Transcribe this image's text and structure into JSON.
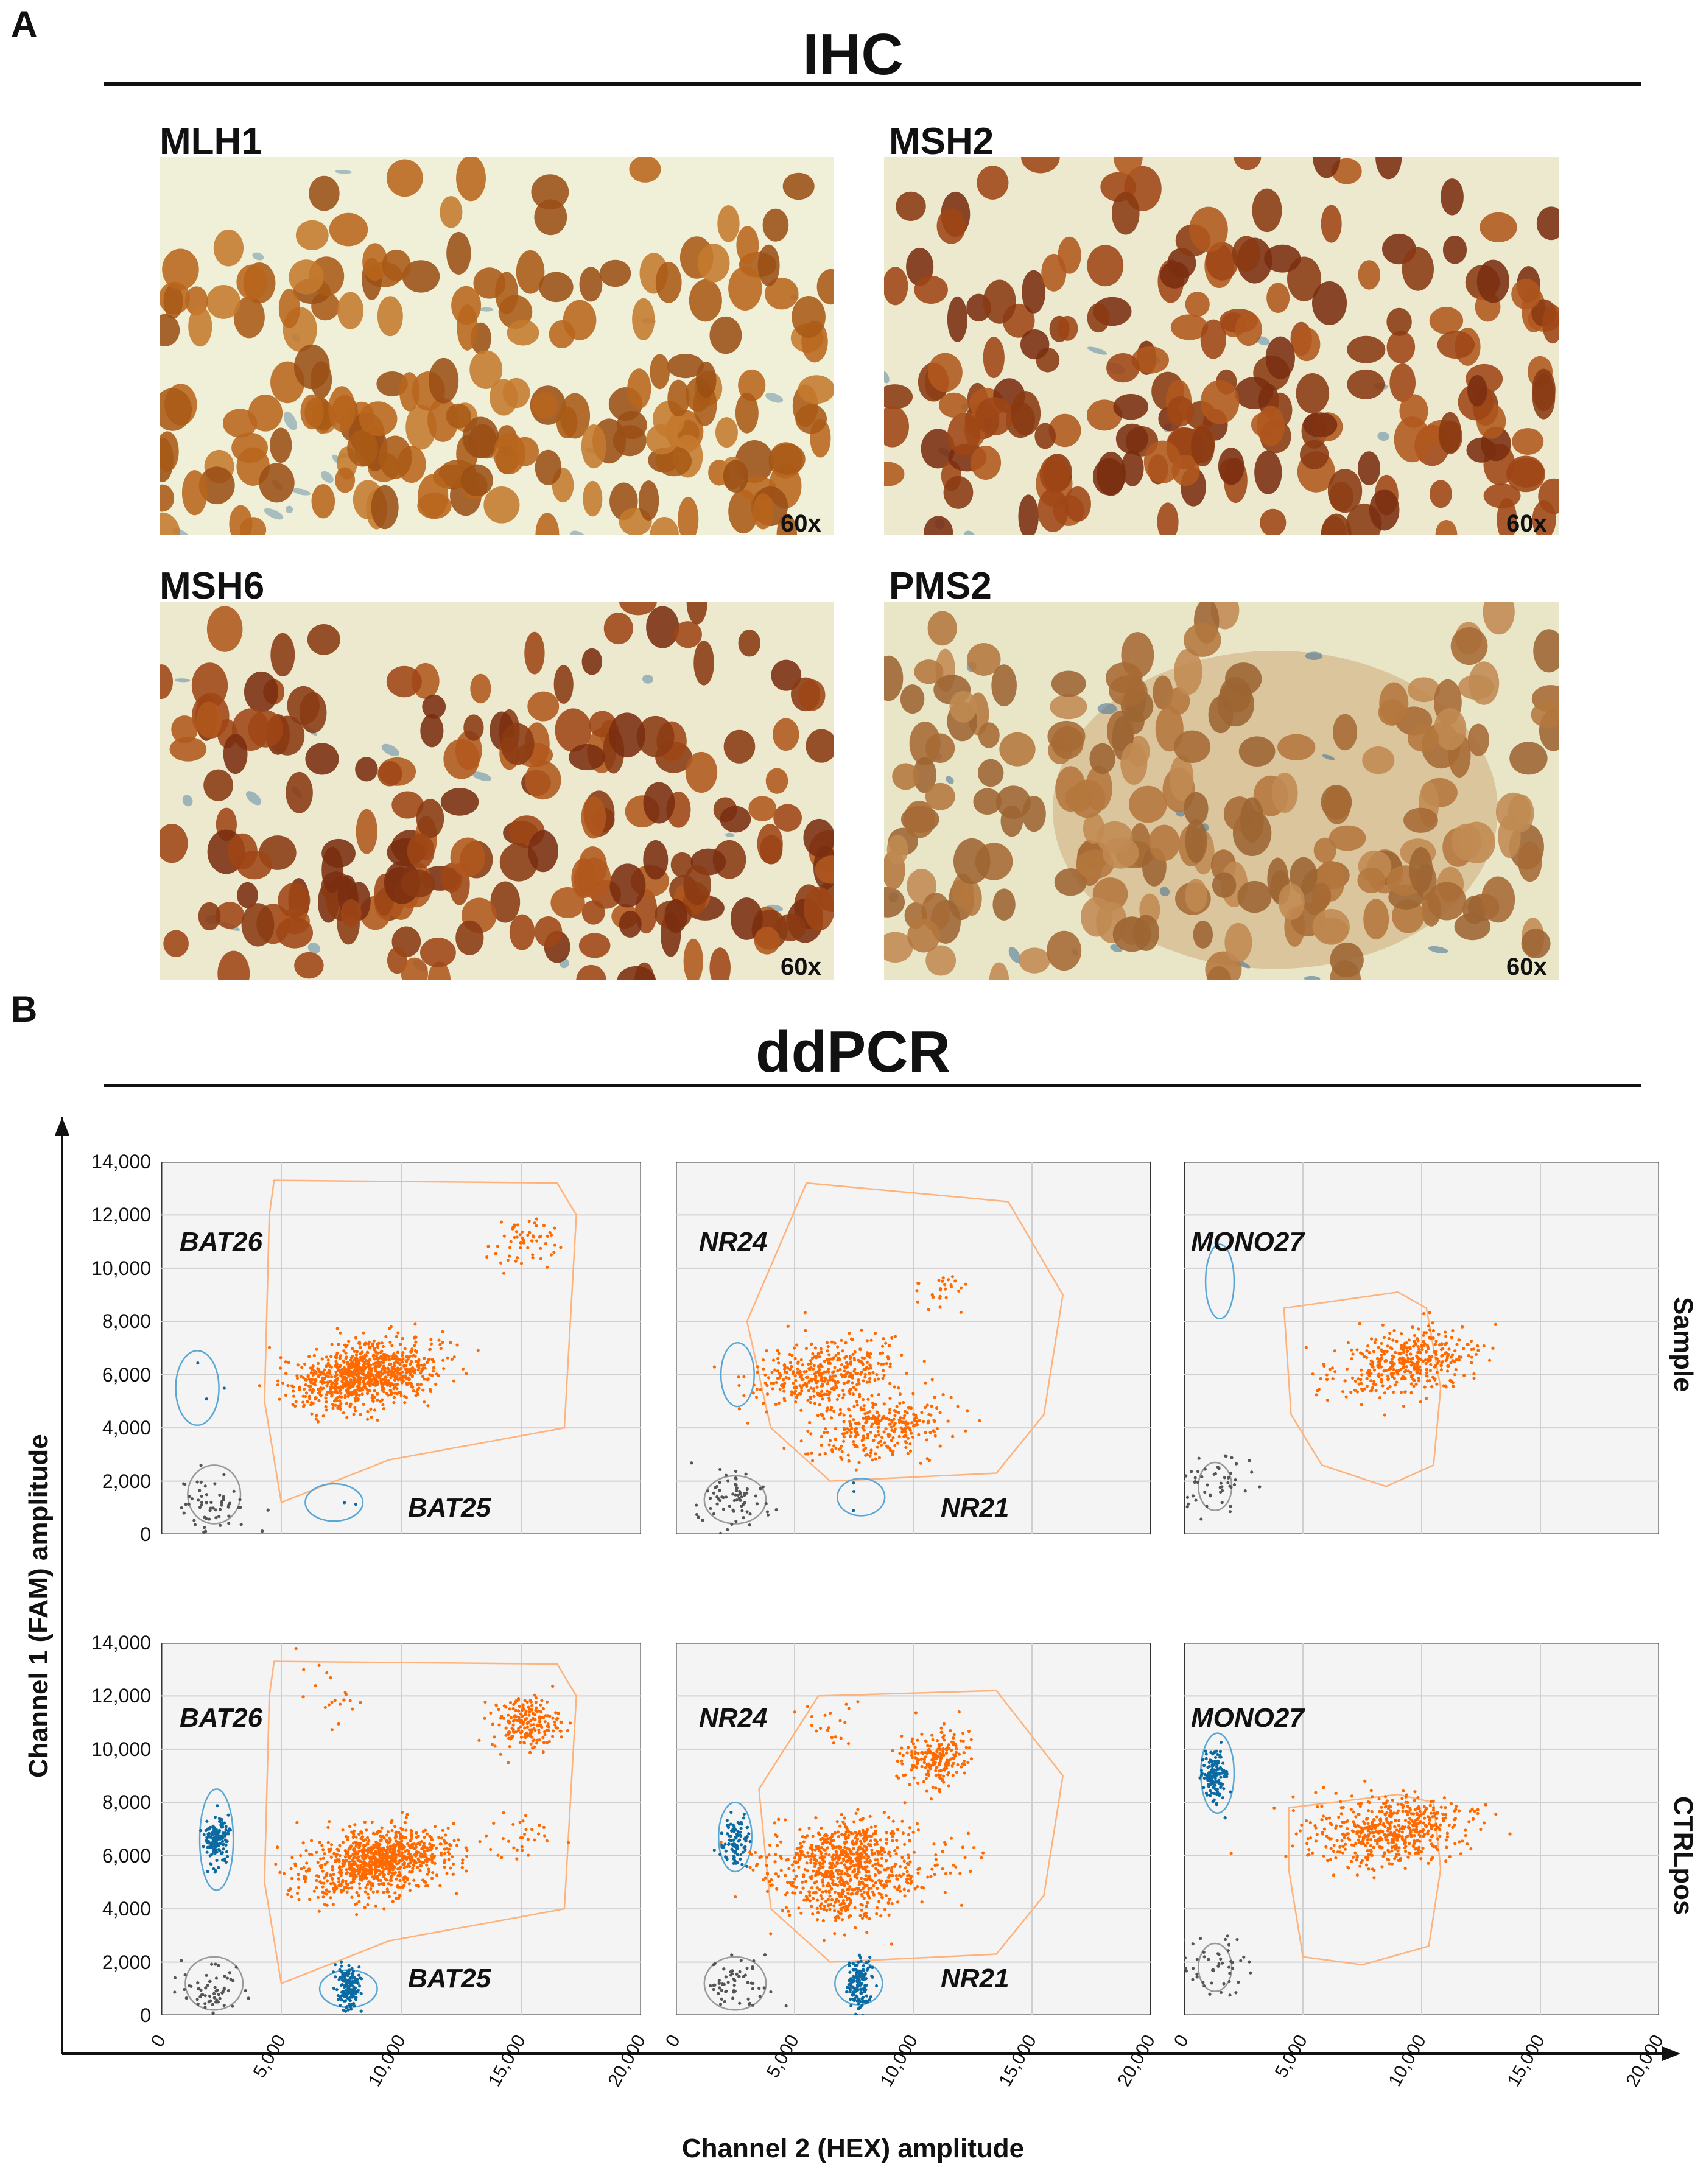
{
  "panel_a": {
    "letter": "A",
    "title": "IHC"
  },
  "panel_b": {
    "letter": "B",
    "title": "ddPCR"
  },
  "ihc_images": [
    {
      "label": "MLH1",
      "magnification": "60x",
      "stain": "brown"
    },
    {
      "label": "MSH2",
      "magnification": "60x",
      "stain": "dark-brown"
    },
    {
      "label": "MSH6",
      "magnification": "60x",
      "stain": "dark-brown"
    },
    {
      "label": "PMS2",
      "magnification": "60x",
      "stain": "light-brown"
    }
  ],
  "colors": {
    "positive_cluster": "#ff6a00",
    "single_cluster": "#0b6aa2",
    "negative_cluster": "#555555",
    "plot_background": "#f4f4f4",
    "gate_orange": "#ffb27a",
    "gate_blue": "#5aa7d6",
    "gate_gray": "#9a9a9a"
  },
  "chart_data": [
    {
      "type": "scatter",
      "row": "Sample",
      "marker_fam": "BAT26",
      "marker_hex": "BAT25",
      "xlabel": "Channel 2 (HEX) amplitude",
      "ylabel": "Channel 1 (FAM) amplitude",
      "xlim": [
        0,
        20000
      ],
      "ylim": [
        0,
        14000
      ],
      "clusters": [
        {
          "name": "double-negative",
          "color": "negative",
          "center": [
            2000,
            1100
          ],
          "n": 60
        },
        {
          "name": "double-positive",
          "color": "positive",
          "center": [
            8500,
            6000
          ],
          "n": 900
        },
        {
          "name": "double-positive-high",
          "color": "positive",
          "center": [
            15000,
            11000
          ],
          "n": 60
        },
        {
          "name": "FAM-single",
          "color": "single",
          "center": [
            2200,
            5700
          ],
          "n": 3
        },
        {
          "name": "HEX-single",
          "color": "single",
          "center": [
            7500,
            1000
          ],
          "n": 2
        }
      ]
    },
    {
      "type": "scatter",
      "row": "Sample",
      "marker_fam": "NR24",
      "marker_hex": "NR21",
      "xlabel": "Channel 2 (HEX) amplitude",
      "ylabel": "Channel 1 (FAM) amplitude",
      "xlim": [
        0,
        20000
      ],
      "ylim": [
        0,
        14000
      ],
      "clusters": [
        {
          "name": "double-negative",
          "color": "negative",
          "center": [
            2500,
            1300
          ],
          "n": 70
        },
        {
          "name": "double-positive-1",
          "color": "positive",
          "center": [
            6300,
            6000
          ],
          "n": 400
        },
        {
          "name": "double-positive-2",
          "color": "positive",
          "center": [
            8500,
            4000
          ],
          "n": 300
        },
        {
          "name": "double-positive-high",
          "color": "positive",
          "center": [
            11200,
            9300
          ],
          "n": 30
        },
        {
          "name": "HEX-single",
          "color": "single",
          "center": [
            7500,
            1200
          ],
          "n": 3
        }
      ]
    },
    {
      "type": "scatter",
      "row": "Sample",
      "marker_fam": "MONO27",
      "marker_hex": "",
      "xlabel": "Channel 2 (HEX) amplitude",
      "ylabel": "Channel 1 (FAM) amplitude",
      "xlim": [
        0,
        20000
      ],
      "ylim": [
        0,
        14000
      ],
      "clusters": [
        {
          "name": "double-negative",
          "color": "negative",
          "center": [
            1300,
            1900
          ],
          "n": 50
        },
        {
          "name": "double-positive",
          "color": "positive",
          "center": [
            9300,
            6500
          ],
          "n": 400
        }
      ]
    },
    {
      "type": "scatter",
      "row": "CTRLpos",
      "marker_fam": "BAT26",
      "marker_hex": "BAT25",
      "xlabel": "Channel 2 (HEX) amplitude",
      "ylabel": "Channel 1 (FAM) amplitude",
      "xlim": [
        0,
        20000
      ],
      "ylim": [
        0,
        14000
      ],
      "clusters": [
        {
          "name": "double-negative",
          "color": "negative",
          "center": [
            2000,
            1000
          ],
          "n": 60
        },
        {
          "name": "FAM-single",
          "color": "single",
          "center": [
            2300,
            6600
          ],
          "n": 150
        },
        {
          "name": "HEX-single",
          "color": "single",
          "center": [
            7800,
            1000
          ],
          "n": 150
        },
        {
          "name": "double-positive",
          "color": "positive",
          "center": [
            9000,
            5800
          ],
          "n": 900
        },
        {
          "name": "double-positive-high",
          "color": "positive",
          "center": [
            15200,
            11000
          ],
          "n": 200
        },
        {
          "name": "FAM-high",
          "color": "positive",
          "center": [
            7000,
            12000
          ],
          "n": 20
        },
        {
          "name": "HEX-high",
          "color": "positive",
          "center": [
            15000,
            6700
          ],
          "n": 30
        }
      ]
    },
    {
      "type": "scatter",
      "row": "CTRLpos",
      "marker_fam": "NR24",
      "marker_hex": "NR21",
      "xlabel": "Channel 2 (HEX) amplitude",
      "ylabel": "Channel 1 (FAM) amplitude",
      "xlim": [
        0,
        20000
      ],
      "ylim": [
        0,
        14000
      ],
      "clusters": [
        {
          "name": "double-negative",
          "color": "negative",
          "center": [
            2500,
            1100
          ],
          "n": 60
        },
        {
          "name": "FAM-single",
          "color": "single",
          "center": [
            2500,
            6500
          ],
          "n": 100
        },
        {
          "name": "HEX-single",
          "color": "single",
          "center": [
            7700,
            1200
          ],
          "n": 150
        },
        {
          "name": "double-positive-1",
          "color": "positive",
          "center": [
            6800,
            6000
          ],
          "n": 500
        },
        {
          "name": "double-positive-2",
          "color": "positive",
          "center": [
            7500,
            4700
          ],
          "n": 300
        },
        {
          "name": "double-positive-high",
          "color": "positive",
          "center": [
            11000,
            9700
          ],
          "n": 200
        },
        {
          "name": "FAM-high",
          "color": "positive",
          "center": [
            6600,
            10800
          ],
          "n": 20
        },
        {
          "name": "HEX-high",
          "color": "positive",
          "center": [
            11500,
            6000
          ],
          "n": 20
        }
      ]
    },
    {
      "type": "scatter",
      "row": "CTRLpos",
      "marker_fam": "MONO27",
      "marker_hex": "",
      "xlabel": "Channel 2 (HEX) amplitude",
      "ylabel": "Channel 1 (FAM) amplitude",
      "xlim": [
        0,
        20000
      ],
      "ylim": [
        0,
        14000
      ],
      "clusters": [
        {
          "name": "double-negative",
          "color": "negative",
          "center": [
            1300,
            1800
          ],
          "n": 50
        },
        {
          "name": "FAM-single",
          "color": "single",
          "center": [
            1300,
            9000
          ],
          "n": 150
        },
        {
          "name": "double-positive",
          "color": "positive",
          "center": [
            8800,
            6900
          ],
          "n": 500
        },
        {
          "name": "double-positive-side",
          "color": "positive",
          "center": [
            6400,
            7300
          ],
          "n": 40
        }
      ]
    }
  ],
  "axes": {
    "yticks": [
      "14,000",
      "12,000",
      "10,000",
      "8,000",
      "6,000",
      "4,000",
      "2,000",
      "0"
    ],
    "xticks": [
      "0",
      "5,000",
      "10,000",
      "15,000",
      "20,000"
    ],
    "ylabel": "Channel 1 (FAM) amplitude",
    "xlabel": "Channel 2 (HEX) amplitude"
  },
  "row_labels": [
    "Sample",
    "CTRLpos"
  ]
}
